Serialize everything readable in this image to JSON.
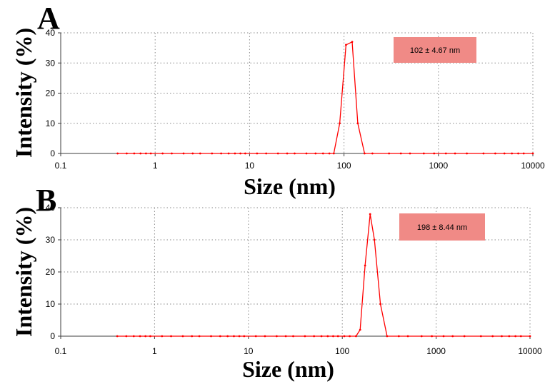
{
  "colors": {
    "series": "#ff0000",
    "annotation_bg": "#f08a86",
    "grid": "#8a8a8a",
    "axis": "#3c3c3c"
  },
  "chart_data": [
    {
      "type": "line",
      "panel_label": "A",
      "xlabel": "Size (nm)",
      "ylabel": "Intensity (%)",
      "xscale": "log",
      "xlim": [
        0.1,
        10000
      ],
      "ylim": [
        0,
        40
      ],
      "xticks": [
        "0.1",
        "1",
        "10",
        "100",
        "1000",
        "10000"
      ],
      "yticks": [
        "0",
        "10",
        "20",
        "30",
        "40"
      ],
      "grid": true,
      "annotation": "102 ± 4.67 nm",
      "series": [
        {
          "x": [
            0.4,
            0.5,
            0.6,
            0.7,
            0.8,
            0.9,
            1.2,
            1.5,
            2,
            2.5,
            3,
            4,
            5,
            6,
            7,
            8,
            9,
            12,
            15,
            20,
            25,
            30,
            40,
            50,
            60,
            70,
            78,
            90,
            105,
            122,
            140,
            165,
            200,
            300,
            400,
            500,
            700,
            900,
            1200,
            1500,
            2000,
            3000,
            4000,
            5000,
            6000,
            7000,
            8000,
            10000
          ],
          "y": [
            0,
            0,
            0,
            0,
            0,
            0,
            0,
            0,
            0,
            0,
            0,
            0,
            0,
            0,
            0,
            0,
            0,
            0,
            0,
            0,
            0,
            0,
            0,
            0,
            0,
            0,
            0,
            10,
            36,
            37,
            10,
            0,
            0,
            0,
            0,
            0,
            0,
            0,
            0,
            0,
            0,
            0,
            0,
            0,
            0,
            0,
            0,
            0
          ]
        }
      ]
    },
    {
      "type": "line",
      "panel_label": "B",
      "xlabel": "Size (nm)",
      "ylabel": "Intensity (%)",
      "xscale": "log",
      "xlim": [
        0.1,
        10000
      ],
      "ylim": [
        0,
        40
      ],
      "xticks": [
        "0.1",
        "1",
        "10",
        "100",
        "1000",
        "10000"
      ],
      "yticks": [
        "0",
        "10",
        "20",
        "30",
        "40"
      ],
      "grid": true,
      "annotation": "198 ± 8.44 nm",
      "series": [
        {
          "x": [
            0.4,
            0.5,
            0.6,
            0.7,
            0.8,
            0.9,
            1.2,
            1.5,
            2,
            2.5,
            3,
            4,
            5,
            6,
            7,
            8,
            9,
            12,
            15,
            20,
            25,
            30,
            40,
            50,
            60,
            70,
            80,
            90,
            105,
            120,
            140,
            155,
            175,
            198,
            220,
            255,
            300,
            400,
            500,
            700,
            900,
            1200,
            1500,
            2000,
            3000,
            4000,
            5000,
            6000,
            7000,
            8000,
            10000
          ],
          "y": [
            0,
            0,
            0,
            0,
            0,
            0,
            0,
            0,
            0,
            0,
            0,
            0,
            0,
            0,
            0,
            0,
            0,
            0,
            0,
            0,
            0,
            0,
            0,
            0,
            0,
            0,
            0,
            0,
            0,
            0,
            0,
            2,
            22,
            38,
            30,
            10,
            0,
            0,
            0,
            0,
            0,
            0,
            0,
            0,
            0,
            0,
            0,
            0,
            0,
            0,
            0
          ]
        }
      ]
    }
  ]
}
